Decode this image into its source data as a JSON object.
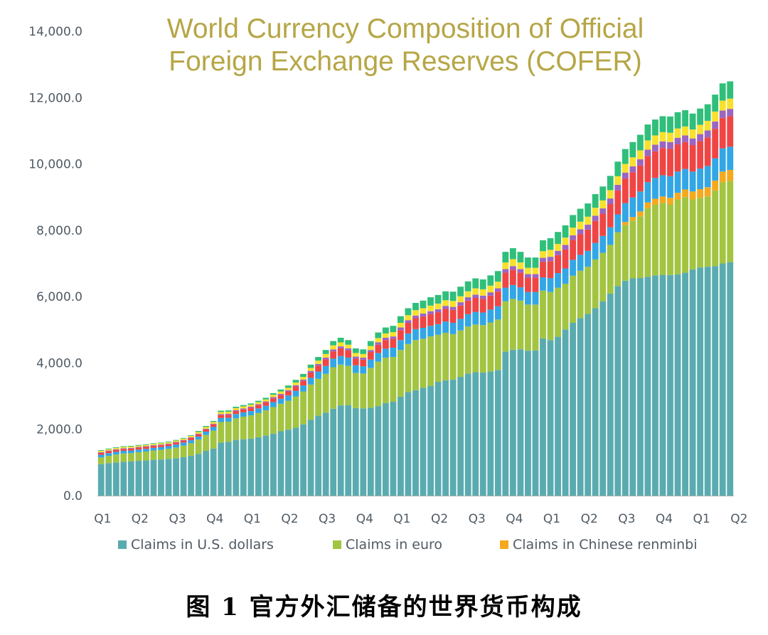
{
  "chart_data": {
    "type": "bar",
    "stacked": true,
    "title_lines": [
      "World Currency Composition of Official",
      "Foreign Exchange Reserves (COFER)"
    ],
    "ylim": [
      0,
      14000
    ],
    "y_ticks": [
      "0.0",
      "2,000.0",
      "4,000.0",
      "6,000.0",
      "8,000.0",
      "10,000.0",
      "12,000.0",
      "14,000.0"
    ],
    "y_tick_values": [
      0,
      2000,
      4000,
      6000,
      8000,
      10000,
      12000,
      14000
    ],
    "x_tick_labels": [
      "Q1",
      "Q2",
      "Q3",
      "Q4",
      "Q1",
      "Q2",
      "Q3",
      "Q4",
      "Q1",
      "Q2",
      "Q3",
      "Q4",
      "Q1",
      "Q2",
      "Q3",
      "Q4",
      "Q1",
      "Q2"
    ],
    "x_tick_positions": [
      0,
      5,
      10,
      15,
      20,
      25,
      30,
      35,
      40,
      45,
      50,
      55,
      60,
      65,
      70,
      75,
      80,
      85
    ],
    "grid": false,
    "series": [
      {
        "name": "Claims in U.S. dollars",
        "color": "#5aabb0",
        "values": [
          950,
          980,
          1000,
          1020,
          1030,
          1050,
          1060,
          1080,
          1090,
          1110,
          1130,
          1160,
          1200,
          1260,
          1350,
          1420,
          1600,
          1620,
          1680,
          1700,
          1720,
          1760,
          1810,
          1870,
          1940,
          1990,
          2050,
          2150,
          2290,
          2410,
          2500,
          2620,
          2720,
          2730,
          2640,
          2630,
          2650,
          2700,
          2790,
          2830,
          2980,
          3120,
          3180,
          3250,
          3310,
          3430,
          3480,
          3500,
          3580,
          3680,
          3720,
          3710,
          3740,
          3790,
          4340,
          4400,
          4410,
          4370,
          4380,
          4740,
          4690,
          4790,
          5010,
          5210,
          5350,
          5480,
          5650,
          5860,
          6090,
          6320,
          6480,
          6550,
          6560,
          6600,
          6640,
          6660,
          6650,
          6670,
          6720,
          6820,
          6880,
          6900,
          6920,
          7000,
          7040
        ]
      },
      {
        "name": "Claims in euro",
        "color": "#a3c441",
        "values": [
          200,
          220,
          240,
          250,
          250,
          260,
          270,
          280,
          290,
          300,
          320,
          350,
          380,
          430,
          480,
          540,
          620,
          610,
          650,
          680,
          700,
          730,
          760,
          800,
          830,
          870,
          940,
          990,
          1060,
          1110,
          1170,
          1250,
          1230,
          1180,
          1060,
          1050,
          1200,
          1340,
          1370,
          1350,
          1410,
          1450,
          1510,
          1480,
          1490,
          1420,
          1430,
          1370,
          1400,
          1420,
          1440,
          1430,
          1480,
          1520,
          1520,
          1530,
          1470,
          1390,
          1380,
          1440,
          1450,
          1480,
          1380,
          1420,
          1430,
          1420,
          1470,
          1460,
          1470,
          1620,
          1680,
          1740,
          1860,
          2070,
          2130,
          2170,
          2130,
          2250,
          2280,
          2110,
          2100,
          2120,
          2280,
          2450,
          2450
        ]
      },
      {
        "name": "Claims in Chinese renminbi",
        "color": "#f4a91f",
        "values": [
          0,
          0,
          0,
          0,
          0,
          0,
          0,
          0,
          0,
          0,
          0,
          0,
          0,
          0,
          0,
          0,
          0,
          0,
          0,
          0,
          0,
          0,
          0,
          0,
          0,
          0,
          0,
          0,
          0,
          0,
          0,
          0,
          0,
          0,
          0,
          0,
          0,
          0,
          0,
          0,
          0,
          0,
          0,
          0,
          0,
          0,
          0,
          0,
          0,
          0,
          0,
          0,
          0,
          0,
          0,
          0,
          0,
          0,
          0,
          0,
          0,
          0,
          0,
          0,
          0,
          0,
          0,
          0,
          0,
          0,
          90,
          110,
          150,
          170,
          180,
          190,
          200,
          210,
          230,
          240,
          260,
          280,
          300,
          320,
          330
        ]
      },
      {
        "color": "#33a6e5",
        "values": [
          80,
          80,
          80,
          80,
          80,
          80,
          80,
          80,
          80,
          80,
          90,
          90,
          90,
          90,
          100,
          110,
          120,
          120,
          130,
          130,
          130,
          140,
          140,
          150,
          150,
          160,
          170,
          180,
          200,
          220,
          240,
          260,
          260,
          250,
          230,
          220,
          250,
          260,
          270,
          280,
          300,
          320,
          330,
          330,
          320,
          320,
          340,
          340,
          350,
          370,
          380,
          380,
          390,
          400,
          410,
          420,
          400,
          380,
          380,
          400,
          420,
          440,
          460,
          480,
          480,
          480,
          500,
          510,
          530,
          540,
          570,
          590,
          600,
          610,
          630,
          640,
          650,
          640,
          620,
          600,
          620,
          640,
          670,
          700,
          700
        ]
      },
      {
        "color": "#ef4545",
        "values": [
          60,
          60,
          60,
          60,
          60,
          60,
          60,
          60,
          60,
          60,
          60,
          60,
          70,
          70,
          70,
          80,
          90,
          90,
          90,
          90,
          100,
          100,
          100,
          110,
          110,
          120,
          130,
          140,
          160,
          180,
          200,
          220,
          230,
          220,
          200,
          200,
          230,
          250,
          260,
          270,
          300,
          320,
          330,
          340,
          350,
          360,
          380,
          390,
          400,
          410,
          420,
          410,
          420,
          440,
          450,
          460,
          440,
          430,
          430,
          470,
          510,
          540,
          570,
          600,
          620,
          640,
          660,
          670,
          700,
          720,
          740,
          760,
          780,
          790,
          800,
          820,
          830,
          820,
          810,
          800,
          830,
          860,
          890,
          920,
          920
        ]
      },
      {
        "color": "#9a66c1",
        "values": [
          20,
          20,
          20,
          20,
          20,
          20,
          20,
          20,
          20,
          20,
          20,
          20,
          20,
          20,
          20,
          20,
          30,
          30,
          30,
          30,
          30,
          30,
          30,
          40,
          40,
          40,
          40,
          40,
          50,
          50,
          50,
          60,
          60,
          60,
          60,
          60,
          60,
          70,
          70,
          70,
          80,
          80,
          80,
          90,
          90,
          90,
          90,
          90,
          100,
          100,
          100,
          100,
          100,
          100,
          110,
          110,
          110,
          110,
          110,
          120,
          130,
          130,
          140,
          140,
          150,
          150,
          160,
          160,
          170,
          170,
          180,
          180,
          190,
          190,
          200,
          200,
          200,
          200,
          200,
          200,
          210,
          210,
          220,
          220,
          220
        ]
      },
      {
        "color": "#f8e12e",
        "values": [
          40,
          40,
          40,
          40,
          40,
          40,
          40,
          40,
          40,
          40,
          40,
          40,
          40,
          50,
          50,
          50,
          60,
          60,
          60,
          60,
          60,
          60,
          60,
          70,
          70,
          70,
          80,
          80,
          90,
          100,
          110,
          120,
          120,
          110,
          110,
          110,
          120,
          130,
          130,
          130,
          140,
          150,
          160,
          160,
          170,
          170,
          170,
          180,
          180,
          180,
          190,
          190,
          200,
          200,
          200,
          210,
          200,
          190,
          190,
          200,
          210,
          210,
          220,
          230,
          230,
          240,
          240,
          240,
          250,
          260,
          260,
          270,
          270,
          280,
          280,
          280,
          280,
          280,
          270,
          270,
          280,
          290,
          300,
          300,
          310
        ]
      },
      {
        "color": "#2fbf7a",
        "values": [
          20,
          20,
          20,
          20,
          20,
          20,
          20,
          20,
          20,
          20,
          20,
          20,
          20,
          30,
          30,
          30,
          40,
          40,
          40,
          40,
          40,
          40,
          50,
          50,
          60,
          70,
          80,
          90,
          100,
          110,
          120,
          130,
          140,
          140,
          140,
          140,
          150,
          170,
          180,
          190,
          200,
          210,
          220,
          230,
          250,
          260,
          270,
          280,
          290,
          300,
          300,
          300,
          310,
          320,
          320,
          330,
          320,
          310,
          310,
          330,
          350,
          360,
          370,
          380,
          390,
          400,
          410,
          420,
          430,
          440,
          450,
          460,
          470,
          480,
          480,
          480,
          490,
          490,
          490,
          480,
          490,
          500,
          510,
          520,
          520
        ]
      }
    ]
  },
  "legend": [
    {
      "label": "Claims in U.S. dollars",
      "color": "#5aabb0"
    },
    {
      "label": "Claims in euro",
      "color": "#a3c441"
    },
    {
      "label": "Claims in Chinese renminbi",
      "color": "#f4a91f"
    }
  ],
  "caption": "图 1  官方外汇储备的世界货币构成"
}
